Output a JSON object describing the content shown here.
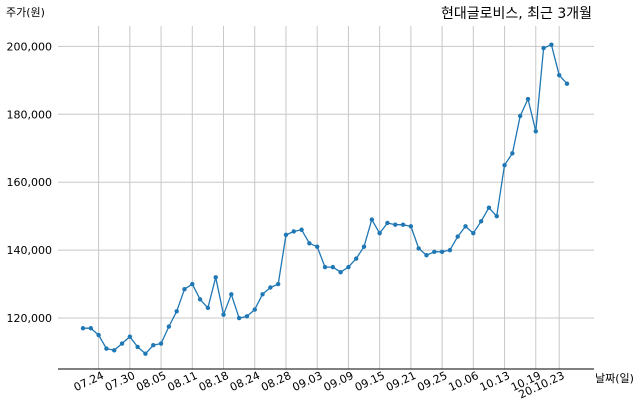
{
  "chart_data": {
    "type": "line",
    "title": "현대글로비스, 최근 3개월",
    "ylabel": "주가(원)",
    "xlabel": "날짜(일)",
    "ylim": [
      105000,
      206000
    ],
    "grid": true,
    "y_ticks": [
      120000,
      140000,
      160000,
      180000,
      200000
    ],
    "y_tick_labels": [
      "120,000",
      "140,000",
      "160,000",
      "180,000",
      "200,000"
    ],
    "x_tick_labels": [
      "07.24",
      "07.30",
      "08.05",
      "08.11",
      "08.18",
      "08.24",
      "08.28",
      "09.03",
      "09.09",
      "09.15",
      "09.21",
      "09.25",
      "10.06",
      "10.13",
      "10.19",
      "20.10.23"
    ],
    "x_tick_index": [
      2,
      6,
      10,
      14,
      18,
      22,
      26,
      30,
      34,
      38,
      42,
      46,
      50,
      54,
      58,
      61
    ],
    "series": [
      {
        "color": "#1f77b4",
        "values": [
          117000,
          117000,
          115000,
          111000,
          110500,
          112500,
          114500,
          111500,
          109500,
          112000,
          112500,
          117500,
          122000,
          128500,
          130000,
          125500,
          123000,
          132000,
          121000,
          127000,
          120000,
          120500,
          122500,
          127000,
          129000,
          130000,
          144500,
          145500,
          146000,
          142000,
          141000,
          135000,
          135000,
          133500,
          135000,
          137500,
          141000,
          149000,
          145000,
          148000,
          147500,
          147500,
          147000,
          140500,
          138500,
          139500,
          139500,
          140000,
          144000,
          147000,
          145000,
          148500,
          152500,
          150000,
          165000,
          168500,
          179500,
          184500,
          175000,
          199500,
          200500,
          191500,
          189000
        ]
      }
    ]
  }
}
